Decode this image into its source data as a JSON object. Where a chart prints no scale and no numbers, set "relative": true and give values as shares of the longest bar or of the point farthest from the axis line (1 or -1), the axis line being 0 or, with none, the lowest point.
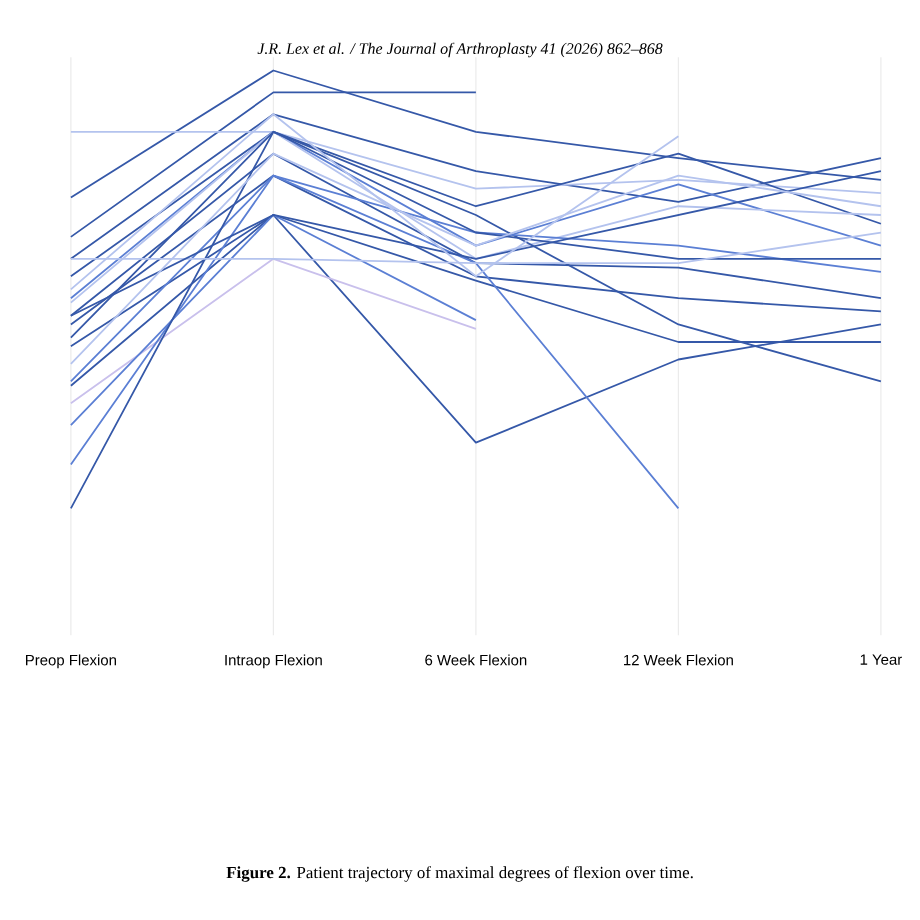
{
  "chart_data": {
    "type": "line",
    "relative": true,
    "grid": "x",
    "categories": [
      "Preop Flexion",
      "Intraop Flexion",
      "6 Week Flexion",
      "12 Week Flexion",
      "1 Year"
    ],
    "annotations": [
      "J.R. Lex et al. / The Journal of Arthroplasty 41 (2026) 862–868",
      "**Figure 2.** Patient trajectory of maximal degrees of flexion over time."
    ],
    "series": [
      {
        "color": "#3558a8",
        "values": [
          0.71,
          1.0,
          0.86,
          0.8,
          0.75
        ]
      },
      {
        "color": "#3558a8",
        "values": [
          0.62,
          0.95,
          0.95,
          null,
          null
        ]
      },
      {
        "color": "#3558a8",
        "values": [
          0.57,
          0.9,
          0.77,
          0.7,
          0.8
        ]
      },
      {
        "color": "#b4c3ee",
        "values": [
          0.86,
          0.86,
          0.73,
          0.75,
          0.72
        ]
      },
      {
        "color": "#3558a8",
        "values": [
          0.53,
          0.86,
          0.69,
          0.81,
          0.65
        ]
      },
      {
        "color": "#5b7fd4",
        "values": [
          0.48,
          0.86,
          0.6,
          0.74,
          0.6
        ]
      },
      {
        "color": "#b4c3ee",
        "values": [
          0.47,
          0.86,
          0.57,
          0.69,
          0.67
        ]
      },
      {
        "color": "#3558a8",
        "values": [
          0.44,
          0.81,
          0.56,
          0.55,
          0.48
        ]
      },
      {
        "color": "#3558a8",
        "values": [
          0.42,
          0.76,
          0.53,
          0.48,
          0.45
        ]
      },
      {
        "color": "#3558a8",
        "values": [
          0.39,
          0.86,
          0.67,
          0.42,
          0.29
        ]
      },
      {
        "color": "#3558a8",
        "values": [
          0.37,
          0.67,
          0.15,
          0.34,
          0.42
        ]
      },
      {
        "color": "#5b7fd4",
        "values": [
          0.29,
          0.76,
          0.63,
          0.6,
          0.54
        ]
      },
      {
        "color": "#3558a8",
        "values": [
          0.28,
          0.67,
          0.52,
          0.38,
          0.38
        ]
      },
      {
        "color": "#c9c0ec",
        "values": [
          0.24,
          0.57,
          0.41,
          null,
          null
        ]
      },
      {
        "color": "#5b7fd4",
        "values": [
          0.19,
          0.67,
          0.43,
          null,
          null
        ]
      },
      {
        "color": "#5b7fd4",
        "values": [
          0.1,
          0.76,
          0.56,
          0.0,
          null
        ]
      },
      {
        "color": "#3558a8",
        "values": [
          0.0,
          0.86,
          0.63,
          0.57,
          0.57
        ]
      },
      {
        "color": "#b4c3ee",
        "values": [
          0.57,
          0.57,
          0.56,
          0.56,
          0.63
        ]
      },
      {
        "color": "#3558a8",
        "values": [
          0.44,
          0.67,
          0.57,
          0.67,
          0.77
        ]
      },
      {
        "color": "#b4c3ee",
        "values": [
          0.33,
          0.81,
          0.6,
          0.76,
          0.69
        ]
      },
      {
        "color": "#b4c3ee",
        "values": [
          0.5,
          0.9,
          0.53,
          0.85,
          null
        ]
      }
    ]
  }
}
